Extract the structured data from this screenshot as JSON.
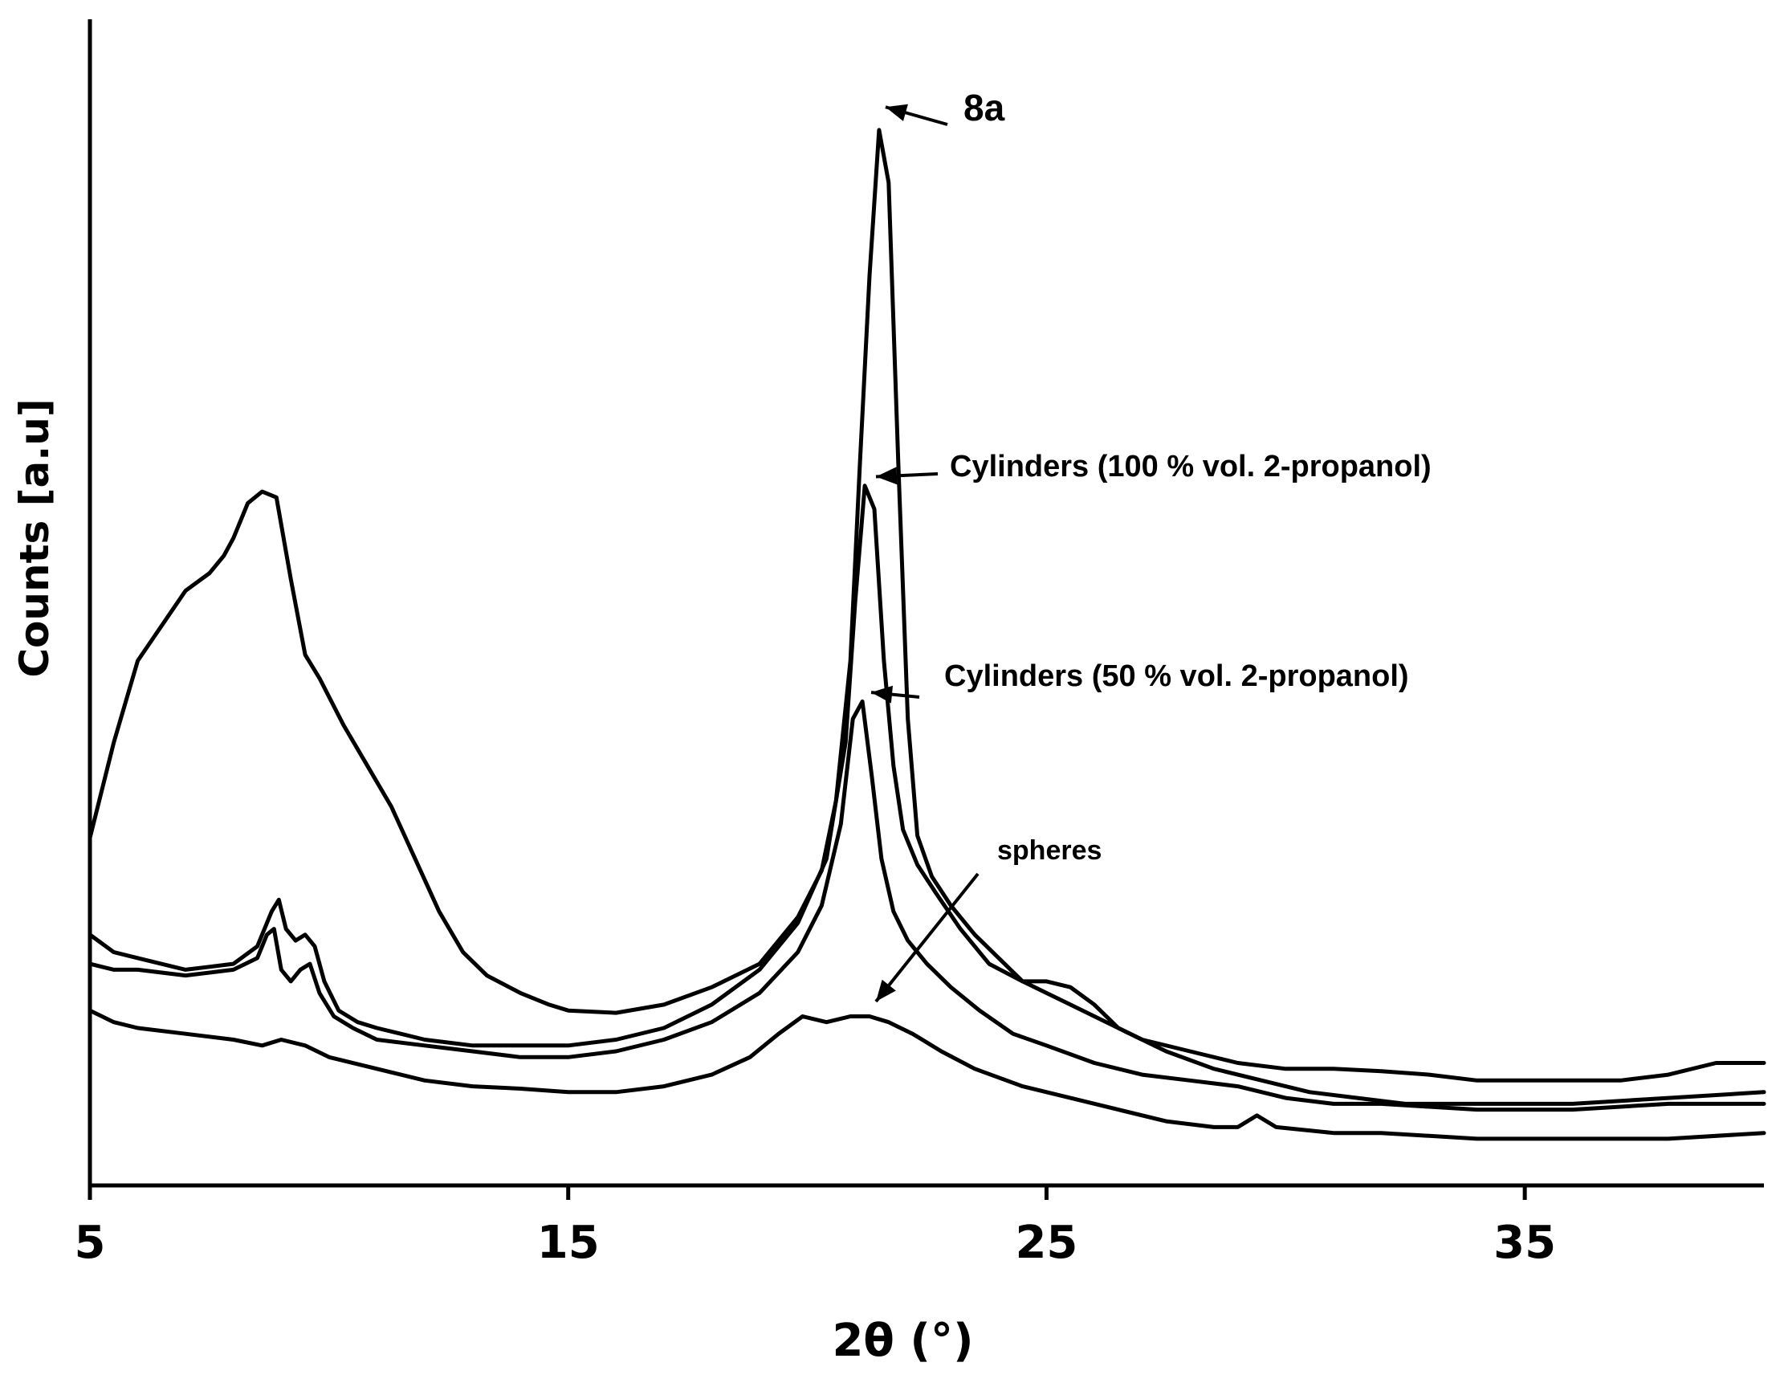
{
  "chart_data": {
    "type": "line",
    "xlabel": "2θ  (°)",
    "ylabel": "Counts [a.u]",
    "xlim": [
      5,
      40
    ],
    "ylim": [
      0,
      100
    ],
    "xticks": [
      "5",
      "15",
      "25",
      "35"
    ],
    "grid": false,
    "legend": "none",
    "annotations": [
      {
        "text": "8a",
        "target_x": 21.5,
        "target_y": 92.2,
        "size": "large"
      },
      {
        "text": "Cylinders (100 % vol. 2-propanol)",
        "target_x": 21.3,
        "target_y": 60.5,
        "size": "medium"
      },
      {
        "text": "Cylinders (50 % vol. 2-propanol)",
        "target_x": 21.2,
        "target_y": 42.0,
        "size": "medium"
      },
      {
        "text": "spheres",
        "target_x": 21.3,
        "target_y": 15.5,
        "size": "small"
      }
    ],
    "series": [
      {
        "name": "8a",
        "x": [
          5.0,
          5.5,
          6.0,
          6.5,
          7.0,
          7.5,
          7.8,
          8.0,
          8.3,
          8.6,
          8.9,
          9.2,
          9.5,
          9.8,
          10.3,
          10.8,
          11.3,
          11.8,
          12.3,
          12.8,
          13.3,
          14.0,
          14.6,
          15.0,
          16.0,
          17.0,
          18.0,
          19.0,
          19.8,
          20.3,
          20.6,
          20.9,
          21.1,
          21.3,
          21.5,
          21.7,
          21.9,
          22.1,
          22.3,
          22.6,
          23.0,
          23.5,
          24.0,
          24.5,
          25.0,
          25.5,
          26.0,
          26.5,
          27.0,
          28.0,
          29.0,
          30.0,
          31.0,
          32.0,
          33.0,
          34.0,
          35.0,
          36.0,
          37.0,
          38.0,
          39.0,
          40.0
        ],
        "y": [
          29.8,
          38.0,
          45.0,
          48.0,
          51.0,
          52.5,
          54.0,
          55.5,
          58.5,
          59.5,
          59.0,
          52.0,
          45.5,
          43.5,
          39.5,
          36.0,
          32.5,
          28.0,
          23.5,
          20.0,
          18.0,
          16.5,
          15.5,
          15.0,
          14.8,
          15.5,
          17.0,
          19.0,
          23.0,
          27.0,
          33.0,
          45.0,
          62.0,
          78.0,
          90.5,
          86.0,
          62.0,
          40.0,
          30.0,
          26.5,
          24.0,
          21.5,
          19.5,
          17.5,
          17.5,
          17.0,
          15.5,
          13.5,
          12.5,
          11.5,
          10.5,
          10.0,
          10.0,
          9.8,
          9.5,
          9.0,
          9.0,
          9.0,
          9.0,
          9.5,
          10.5,
          10.5
        ]
      },
      {
        "name": "Cylinders (100 % vol. 2-propanol)",
        "x": [
          5.0,
          5.5,
          6.0,
          7.0,
          8.0,
          8.5,
          8.8,
          8.95,
          9.1,
          9.3,
          9.5,
          9.7,
          9.9,
          10.2,
          10.6,
          11.0,
          11.5,
          12.0,
          13.0,
          14.0,
          15.0,
          16.0,
          17.0,
          18.0,
          19.0,
          19.8,
          20.4,
          20.8,
          21.0,
          21.2,
          21.4,
          21.6,
          21.8,
          22.0,
          22.3,
          22.7,
          23.2,
          23.8,
          24.5,
          25.0,
          25.5,
          26.5,
          27.5,
          28.5,
          29.5,
          30.5,
          31.5,
          32.5,
          34.0,
          36.0,
          38.0,
          40.0
        ],
        "y": [
          21.5,
          20.0,
          19.5,
          18.5,
          19.0,
          20.5,
          23.5,
          24.5,
          22.0,
          21.0,
          21.5,
          20.5,
          17.5,
          15.0,
          14.0,
          13.5,
          13.0,
          12.5,
          12.0,
          12.0,
          12.0,
          12.5,
          13.5,
          15.5,
          18.5,
          22.5,
          28.0,
          38.0,
          50.0,
          60.0,
          58.0,
          45.0,
          36.0,
          30.5,
          27.5,
          25.0,
          22.0,
          19.0,
          17.5,
          16.5,
          15.5,
          13.5,
          11.5,
          10.0,
          9.0,
          8.0,
          7.5,
          7.0,
          7.0,
          7.0,
          7.5,
          8.0
        ]
      },
      {
        "name": "Cylinders (50 % vol. 2-propanol)",
        "x": [
          5.0,
          5.5,
          6.0,
          7.0,
          8.0,
          8.5,
          8.7,
          8.85,
          9.0,
          9.2,
          9.4,
          9.6,
          9.8,
          10.1,
          10.5,
          11.0,
          12.0,
          13.0,
          14.0,
          15.0,
          16.0,
          17.0,
          18.0,
          19.0,
          19.8,
          20.3,
          20.7,
          20.95,
          21.15,
          21.35,
          21.55,
          21.8,
          22.1,
          22.5,
          23.0,
          23.6,
          24.3,
          25.0,
          26.0,
          27.0,
          28.0,
          29.0,
          30.0,
          31.0,
          32.0,
          34.0,
          36.0,
          38.0,
          40.0
        ],
        "y": [
          19.0,
          18.5,
          18.5,
          18.0,
          18.5,
          19.5,
          21.5,
          22.0,
          18.5,
          17.5,
          18.5,
          19.0,
          16.5,
          14.5,
          13.5,
          12.5,
          12.0,
          11.5,
          11.0,
          11.0,
          11.5,
          12.5,
          14.0,
          16.5,
          20.0,
          24.0,
          31.0,
          40.0,
          41.5,
          35.0,
          28.0,
          23.5,
          21.0,
          19.0,
          17.0,
          15.0,
          13.0,
          12.0,
          10.5,
          9.5,
          9.0,
          8.5,
          7.5,
          7.0,
          7.0,
          6.5,
          6.5,
          7.0,
          7.0
        ]
      },
      {
        "name": "spheres",
        "x": [
          5.0,
          5.5,
          6.0,
          7.0,
          8.0,
          8.6,
          9.0,
          9.5,
          10.0,
          11.0,
          12.0,
          13.0,
          14.0,
          15.0,
          16.0,
          17.0,
          18.0,
          18.8,
          19.4,
          19.9,
          20.4,
          20.9,
          21.3,
          21.7,
          22.2,
          22.8,
          23.5,
          24.5,
          25.5,
          26.5,
          27.5,
          28.5,
          29.0,
          29.4,
          29.8,
          31.0,
          32.0,
          34.0,
          36.0,
          38.0,
          40.0
        ],
        "y": [
          15.0,
          14.0,
          13.5,
          13.0,
          12.5,
          12.0,
          12.5,
          12.0,
          11.0,
          10.0,
          9.0,
          8.5,
          8.3,
          8.0,
          8.0,
          8.5,
          9.5,
          11.0,
          13.0,
          14.5,
          14.0,
          14.5,
          14.5,
          14.0,
          13.0,
          11.5,
          10.0,
          8.5,
          7.5,
          6.5,
          5.5,
          5.0,
          5.0,
          6.0,
          5.0,
          4.5,
          4.5,
          4.0,
          4.0,
          4.0,
          4.5
        ]
      }
    ]
  }
}
